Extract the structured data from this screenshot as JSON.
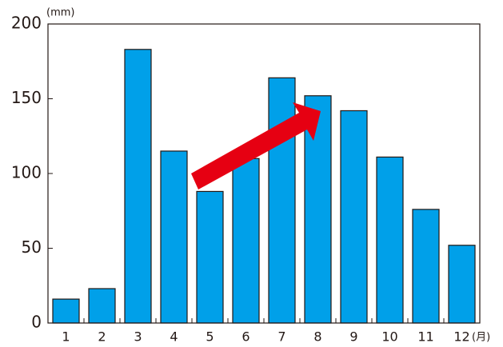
{
  "chart_data": {
    "type": "bar",
    "categories": [
      "1",
      "2",
      "3",
      "4",
      "5",
      "6",
      "7",
      "8",
      "9",
      "10",
      "11",
      "12"
    ],
    "values": [
      16,
      23,
      183,
      115,
      88,
      110,
      164,
      152,
      142,
      111,
      76,
      52
    ],
    "color": "#00a0e9",
    "ylim": [
      0,
      200
    ],
    "yticks": [
      0,
      50,
      100,
      150,
      200
    ],
    "y_unit": "(mm)",
    "x_unit": "(月)",
    "grid": false
  }
}
